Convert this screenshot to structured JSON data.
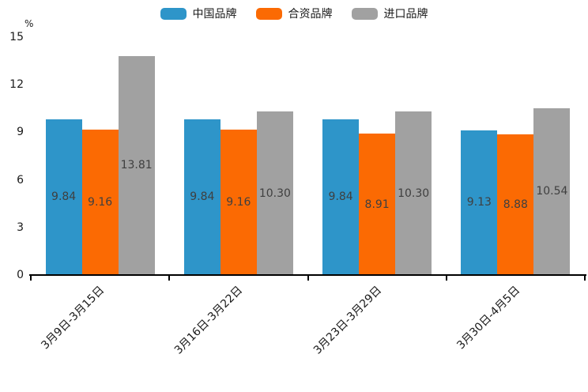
{
  "chart": {
    "unit_label": "%",
    "axis_color": "#000000",
    "value_label_color": "#3f3f3f",
    "tick_text_color": "#1a1a1a",
    "background": "#ffffff"
  },
  "legend": {
    "position": "top",
    "items": [
      {
        "key": "china-brand",
        "label": "中国品牌",
        "color": "#2e95c9"
      },
      {
        "key": "joint-venture-brand",
        "label": "合资品牌",
        "color": "#fb6a03"
      },
      {
        "key": "import-brand",
        "label": "进口品牌",
        "color": "#a1a1a1"
      }
    ]
  },
  "chart_data": {
    "type": "bar",
    "title": "",
    "categories": [
      "3月9日-3月15日",
      "3月16日-3月22日",
      "3月23日-3月29日",
      "3月30日-4月5日"
    ],
    "series": [
      {
        "key": "china-brand",
        "name": "中国品牌",
        "color": "#2e95c9",
        "values": [
          9.84,
          9.84,
          9.84,
          9.13
        ]
      },
      {
        "key": "joint-venture-brand",
        "name": "合资品牌",
        "color": "#fb6a03",
        "values": [
          9.16,
          9.16,
          8.91,
          8.88
        ]
      },
      {
        "key": "import-brand",
        "name": "进口品牌",
        "color": "#a1a1a1",
        "values": [
          13.81,
          10.3,
          10.3,
          10.54
        ]
      }
    ],
    "xlabel": "",
    "ylabel": "%",
    "ylim": [
      0,
      15
    ],
    "yticks": [
      0,
      3,
      6,
      9,
      12,
      15
    ],
    "grid": false,
    "legend_position": "top",
    "value_labels": true,
    "value_label_decimals": 2
  }
}
